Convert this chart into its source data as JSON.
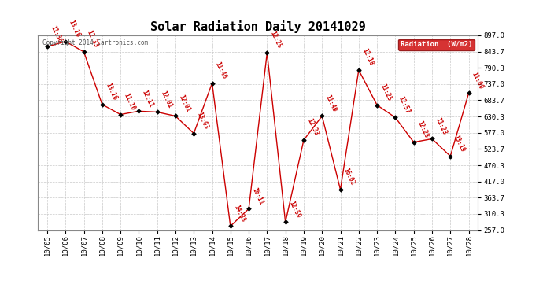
{
  "title": "Solar Radiation Daily 20141029",
  "copyright": "Copyright 2014 Cartronics.com",
  "legend_label": "Radiation  (W/m2)",
  "x_labels": [
    "10/05",
    "10/06",
    "10/07",
    "10/08",
    "10/09",
    "10/10",
    "10/11",
    "10/12",
    "10/13",
    "10/14",
    "10/15",
    "10/16",
    "10/17",
    "10/18",
    "10/19",
    "10/20",
    "10/21",
    "10/22",
    "10/23",
    "10/24",
    "10/25",
    "10/26",
    "10/27",
    "10/28"
  ],
  "y_values": [
    860,
    877,
    843,
    670,
    637,
    648,
    645,
    632,
    575,
    740,
    270,
    327,
    840,
    283,
    553,
    632,
    390,
    783,
    668,
    627,
    546,
    557,
    500,
    707
  ],
  "time_labels": [
    "11:36",
    "13:16",
    "12:33",
    "13:16",
    "11:10",
    "12:11",
    "12:01",
    "12:01",
    "13:03",
    "11:46",
    "14:38",
    "16:11",
    "12:25",
    "12:59",
    "12:33",
    "11:49",
    "16:02",
    "12:18",
    "11:25",
    "12:57",
    "12:28",
    "11:23",
    "13:19",
    "11:00"
  ],
  "ylim": [
    257.0,
    897.0
  ],
  "yticks": [
    257.0,
    310.3,
    363.7,
    417.0,
    470.3,
    523.7,
    577.0,
    630.3,
    683.7,
    737.0,
    790.3,
    843.7,
    897.0
  ],
  "line_color": "#cc0000",
  "marker_color": "#000000",
  "bg_color": "#ffffff",
  "grid_color": "#bbbbbb",
  "title_fontsize": 11,
  "tick_fontsize": 6.5,
  "time_label_color": "#cc0000",
  "legend_bg": "#cc0000",
  "legend_text_color": "#ffffff",
  "figwidth": 6.9,
  "figheight": 3.75,
  "dpi": 100
}
